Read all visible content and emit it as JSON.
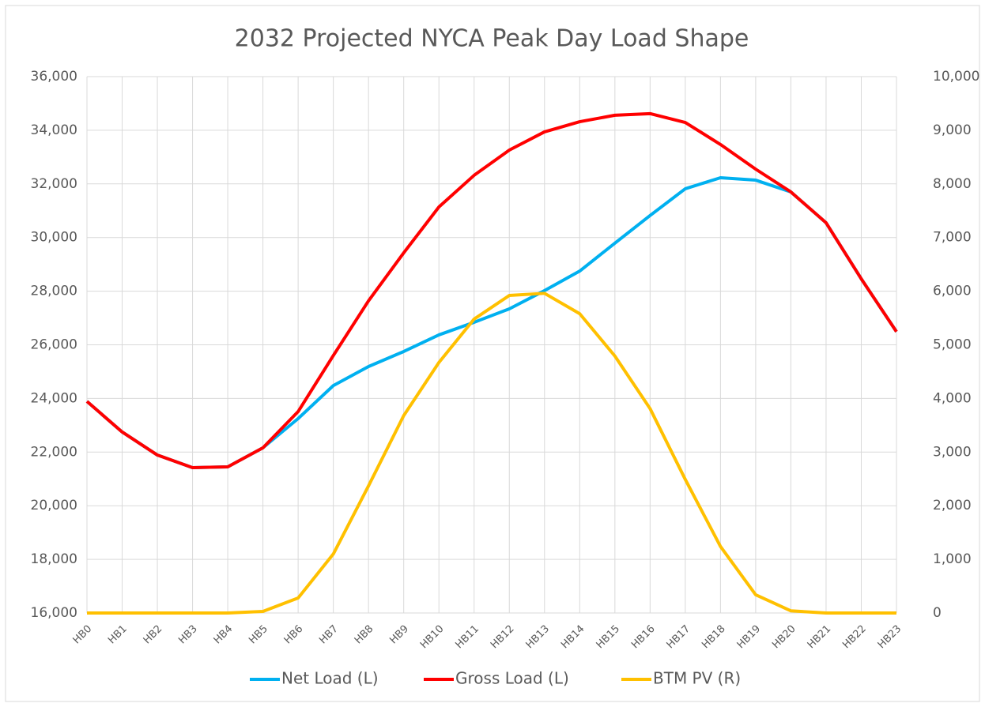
{
  "chart_data": {
    "type": "line",
    "title": "2032 Projected NYCA Peak Day Load Shape",
    "categories": [
      "HB0",
      "HB1",
      "HB2",
      "HB3",
      "HB4",
      "HB5",
      "HB6",
      "HB7",
      "HB8",
      "HB9",
      "HB10",
      "HB11",
      "HB12",
      "HB13",
      "HB14",
      "HB15",
      "HB16",
      "HB17",
      "HB18",
      "HB19",
      "HB20",
      "HB21",
      "HB22",
      "HB23"
    ],
    "series": [
      {
        "name": "Net Load (L)",
        "color": "#00b0f0",
        "values": [
          23890,
          22750,
          21890,
          21420,
          21450,
          22160,
          23250,
          24480,
          25190,
          25750,
          26370,
          26840,
          27340,
          28020,
          28750,
          29790,
          30820,
          31820,
          32230,
          32140,
          31700,
          30550,
          28460,
          26490
        ]
      },
      {
        "name": "Gross Load (L)",
        "color": "#ff0000",
        "values": [
          23890,
          22750,
          21890,
          21420,
          21450,
          22160,
          23510,
          25600,
          27640,
          29430,
          31140,
          32320,
          33260,
          33940,
          34320,
          34560,
          34620,
          34290,
          33470,
          32550,
          31700,
          30550,
          28460,
          26490
        ]
      },
      {
        "name": "BTM PV (R)",
        "color": "#ffc000",
        "axis": "y2",
        "values": [
          0,
          0,
          0,
          0,
          0,
          30,
          280,
          1100,
          2370,
          3680,
          4670,
          5480,
          5920,
          5960,
          5580,
          4790,
          3810,
          2490,
          1240,
          340,
          40,
          0,
          0,
          0
        ]
      }
    ],
    "ylim": [
      16000,
      36000
    ],
    "yticks": [
      {
        "value": 16000,
        "label": "16,000"
      },
      {
        "value": 18000,
        "label": "18,000"
      },
      {
        "value": 20000,
        "label": "20,000"
      },
      {
        "value": 22000,
        "label": "22,000"
      },
      {
        "value": 24000,
        "label": "24,000"
      },
      {
        "value": 26000,
        "label": "26,000"
      },
      {
        "value": 28000,
        "label": "28,000"
      },
      {
        "value": 30000,
        "label": "30,000"
      },
      {
        "value": 32000,
        "label": "32,000"
      },
      {
        "value": 34000,
        "label": "34,000"
      },
      {
        "value": 36000,
        "label": "36,000"
      }
    ],
    "y2lim": [
      0,
      10000
    ],
    "y2ticks": [
      0,
      {
        "value": 1000,
        "label": "1,000"
      },
      {
        "value": 2000,
        "label": "2,000"
      },
      {
        "value": 3000,
        "label": "3,000"
      },
      {
        "value": 4000,
        "label": "4,000"
      },
      {
        "value": 5000,
        "label": "5,000"
      },
      {
        "value": 6000,
        "label": "6,000"
      },
      {
        "value": 7000,
        "label": "7,000"
      },
      {
        "value": 8000,
        "label": "8,000"
      },
      {
        "value": 9000,
        "label": "9,000"
      },
      {
        "value": 10000,
        "label": "10,000"
      }
    ],
    "grid": true,
    "legend": "bottom"
  }
}
